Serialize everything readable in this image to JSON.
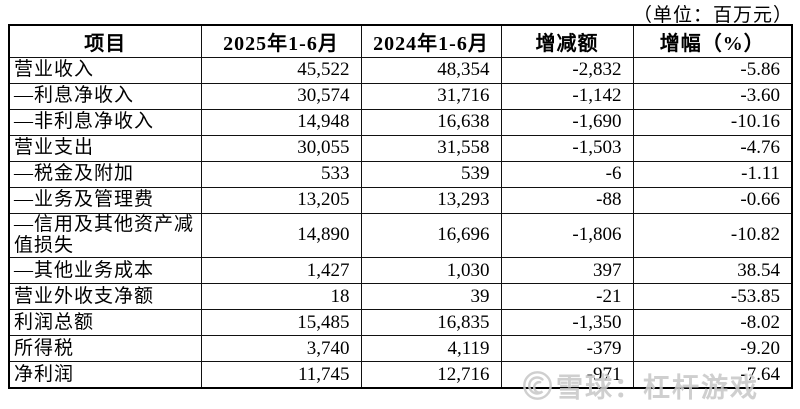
{
  "unit_label": "（单位：百万元）",
  "table": {
    "headers": [
      "项目",
      "2025年1-6月",
      "2024年1-6月",
      "增减额",
      "增幅（%）"
    ],
    "rows": [
      {
        "label": "营业收入",
        "v2025": "45,522",
        "v2024": "48,354",
        "change": "-2,832",
        "pct": "-5.86"
      },
      {
        "label": "—利息净收入",
        "v2025": "30,574",
        "v2024": "31,716",
        "change": "-1,142",
        "pct": "-3.60"
      },
      {
        "label": "—非利息净收入",
        "v2025": "14,948",
        "v2024": "16,638",
        "change": "-1,690",
        "pct": "-10.16"
      },
      {
        "label": "营业支出",
        "v2025": "30,055",
        "v2024": "31,558",
        "change": "-1,503",
        "pct": "-4.76"
      },
      {
        "label": "—税金及附加",
        "v2025": "533",
        "v2024": "539",
        "change": "-6",
        "pct": "-1.11"
      },
      {
        "label": "—业务及管理费",
        "v2025": "13,205",
        "v2024": "13,293",
        "change": "-88",
        "pct": "-0.66"
      },
      {
        "label": "—信用及其他资产减\n值损失",
        "v2025": "14,890",
        "v2024": "16,696",
        "change": "-1,806",
        "pct": "-10.82"
      },
      {
        "label": "—其他业务成本",
        "v2025": "1,427",
        "v2024": "1,030",
        "change": "397",
        "pct": "38.54"
      },
      {
        "label": "营业外收支净额",
        "v2025": "18",
        "v2024": "39",
        "change": "-21",
        "pct": "-53.85"
      },
      {
        "label": "利润总额",
        "v2025": "15,485",
        "v2024": "16,835",
        "change": "-1,350",
        "pct": "-8.02"
      },
      {
        "label": "所得税",
        "v2025": "3,740",
        "v2024": "4,119",
        "change": "-379",
        "pct": "-9.20"
      },
      {
        "label": "净利润",
        "v2025": "11,745",
        "v2024": "12,716",
        "change": "-971",
        "pct": "-7.64"
      }
    ]
  },
  "watermark": {
    "icon": "xueqiu-snowball-logo-icon",
    "text": "雪球：杠杆游戏",
    "color": "#c9c9c9"
  }
}
